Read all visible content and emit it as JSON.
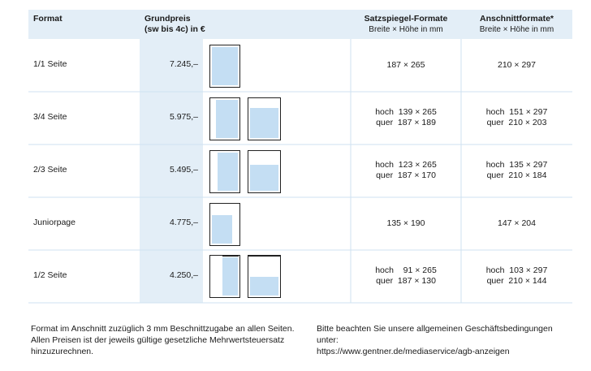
{
  "header": [
    "Format",
    [
      "Grundpreis",
      "(sw bis 4c) in €"
    ],
    [
      "Satzspiegel-Formate",
      "Breite × Höhe in mm"
    ],
    [
      "Anschnittformate*",
      "Breite × Höhe in mm"
    ]
  ],
  "rows": [
    {
      "format": "1/1 Seite",
      "price": "7.245,–",
      "satzspiegel": [
        "187 × 265"
      ],
      "anschnitt": [
        "210 × 297"
      ]
    },
    {
      "format": "3/4 Seite",
      "price": "5.975,–",
      "satzspiegel": [
        "hoch  139 × 265",
        "quer  187 × 189"
      ],
      "anschnitt": [
        "hoch  151 × 297",
        "quer  210 × 203"
      ]
    },
    {
      "format": "2/3 Seite",
      "price": "5.495,–",
      "satzspiegel": [
        "hoch  123 × 265",
        "quer  187 × 170"
      ],
      "anschnitt": [
        "hoch  135 × 297",
        "quer  210 × 184"
      ]
    },
    {
      "format": "Juniorpage",
      "price": "4.775,–",
      "satzspiegel": [
        "135 × 190"
      ],
      "anschnitt": [
        "147 × 204"
      ]
    },
    {
      "format": "1/2 Seite",
      "price": "4.250,–",
      "satzspiegel": [
        "hoch    91 × 265",
        "quer  187 × 130"
      ],
      "anschnitt": [
        "hoch  103 × 297",
        "quer  210 × 144"
      ]
    }
  ],
  "footer": {
    "left": [
      "Format im Anschnitt zuzüglich 3 mm Beschnittzugabe an allen Seiten.",
      "Allen Preisen ist der jeweils gültige gesetzliche Mehrwertsteuersatz",
      "hinzuzurechnen."
    ],
    "right": [
      "Bitte beachten Sie unsere allgemeinen Geschäftsbedingungen unter:",
      "https://www.gentner.de/mediaservice/agb-anzeigen"
    ]
  }
}
